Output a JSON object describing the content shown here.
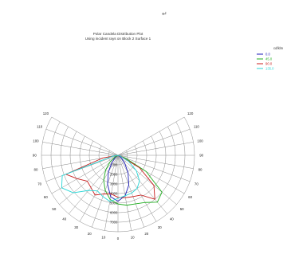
{
  "chart_data": {
    "type": "polar-line",
    "title": "Polar Candela Distribution Plot",
    "subtitle": "Using incident rays on Block 2 Surface 1",
    "legend_title": "cd/klm",
    "legend_position": "top-right",
    "angle_ticks": [
      "120",
      "110",
      "100",
      "90",
      "80",
      "70",
      "60",
      "50",
      "40",
      "30",
      "20",
      "10",
      "0",
      "10",
      "20",
      "30",
      "40",
      "50",
      "60",
      "70",
      "80",
      "90",
      "100",
      "110",
      "120"
    ],
    "angle_range": [
      -120,
      120
    ],
    "radial_labels": [
      "7000",
      "6000",
      "5000",
      "4000",
      "3000",
      "2000",
      "1000"
    ],
    "radial_range": [
      0,
      8000
    ],
    "grid": true,
    "series": [
      {
        "name": "0.0",
        "color": "#1a1ab8",
        "theta": [
          -70,
          -60,
          -50,
          -40,
          -30,
          -20,
          -10,
          0,
          10,
          20,
          30,
          40,
          50,
          60,
          70
        ],
        "r": [
          0,
          150,
          400,
          1000,
          2000,
          3200,
          4400,
          4800,
          4300,
          3300,
          2100,
          1100,
          500,
          200,
          0
        ]
      },
      {
        "name": "45.0",
        "color": "#1fae1f",
        "theta": [
          -70,
          -60,
          -50,
          -40,
          -30,
          -20,
          -10,
          0,
          10,
          20,
          30,
          40,
          50,
          60,
          70
        ],
        "r": [
          0,
          400,
          1100,
          2000,
          3000,
          3900,
          4700,
          5100,
          5300,
          5400,
          5700,
          6400,
          6000,
          3400,
          800
        ]
      },
      {
        "name": "90.0",
        "color": "#c81e1e",
        "theta": [
          -80,
          -70,
          -60,
          -50,
          -40,
          -30,
          -20,
          -10,
          0,
          10,
          20,
          30,
          40,
          50,
          60,
          70
        ],
        "r": [
          1600,
          5800,
          4900,
          4200,
          4400,
          4800,
          4300,
          4100,
          4400,
          4500,
          4600,
          4800,
          6000,
          4900,
          2600,
          400
        ]
      },
      {
        "name": "135.0",
        "color": "#29d6d6",
        "theta": [
          -80,
          -70,
          -60,
          -50,
          -40,
          -30,
          -20,
          -10,
          0,
          10,
          20,
          30,
          40,
          50,
          60,
          70
        ],
        "r": [
          600,
          6200,
          6800,
          6100,
          4800,
          4300,
          4600,
          4900,
          4500,
          4300,
          4200,
          4000,
          3500,
          2500,
          1300,
          300
        ]
      }
    ]
  },
  "page": {
    "return_symbol": "↵"
  }
}
